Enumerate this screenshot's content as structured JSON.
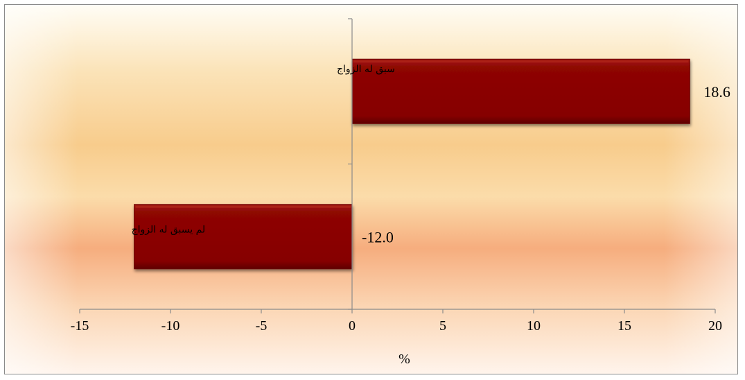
{
  "chart_data": {
    "type": "bar",
    "orientation": "horizontal",
    "categories": [
      "سبق له الزواج",
      "لم يسبق له الزواج"
    ],
    "values": [
      18.6,
      -12.0
    ],
    "value_labels": [
      "18.6",
      "-12.0"
    ],
    "xlabel": "%",
    "xlim": [
      -15,
      20
    ],
    "x_ticks": [
      -15,
      -10,
      -5,
      0,
      5,
      10,
      15,
      20
    ],
    "x_tick_labels": [
      "-15",
      "-10",
      "-5",
      "0",
      "5",
      "10",
      "15",
      "20"
    ],
    "grid": false,
    "legend": "none",
    "colors": {
      "bar_fill": "#8b0000",
      "bar_highlight": "#b0271c",
      "bar_shadow": "#5e0000",
      "axis": "#8a8a8a",
      "background_light": "#fff7e6",
      "background_warm": "#f7c98a",
      "background_peach": "#f6ad7e"
    }
  }
}
